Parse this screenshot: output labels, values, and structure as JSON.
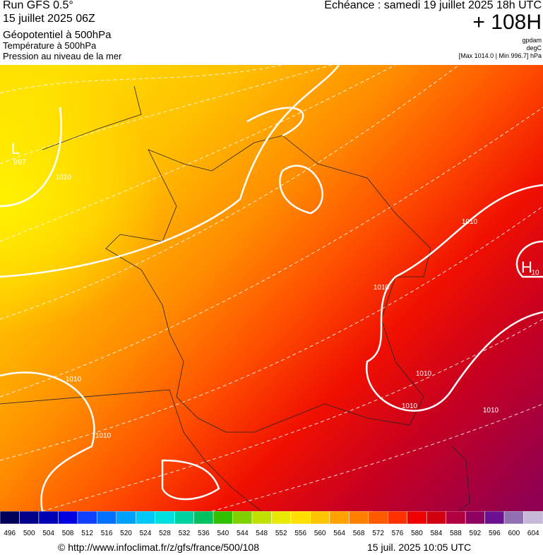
{
  "header": {
    "run": "Run GFS 0.5°",
    "run_date": "15 juillet 2025 06Z",
    "field_1": "Géopotentiel à 500hPa",
    "field_2": "Température à 500hPa",
    "field_3": "Pression au niveau de la mer",
    "valid": "Echéance : samedi 19 juillet 2025 18h UTC",
    "lead": "+ 108H",
    "unit_1": "gpdam",
    "unit_2": "degC",
    "extremes": "[Max 1014.0 | Min 996.7] hPa"
  },
  "map": {
    "labels": [
      "L",
      "997",
      "H",
      "10",
      "1010",
      "1010",
      "1010",
      "1010",
      "1010",
      "1010",
      "1010",
      "1010"
    ]
  },
  "colorbar": {
    "levels": [
      496,
      500,
      504,
      508,
      512,
      516,
      520,
      524,
      528,
      532,
      536,
      540,
      544,
      548,
      552,
      556,
      560,
      564,
      568,
      572,
      576,
      580,
      584,
      588,
      592,
      596,
      600,
      604
    ],
    "colors": [
      "#00005a",
      "#000088",
      "#0000b4",
      "#0000e0",
      "#1040ff",
      "#0070ff",
      "#00a0ff",
      "#00c8f8",
      "#00e0e0",
      "#00d2a0",
      "#00c060",
      "#30c000",
      "#80d000",
      "#c0e000",
      "#e8e800",
      "#ffe000",
      "#ffc400",
      "#ffa200",
      "#ff8000",
      "#ff5a00",
      "#ff3000",
      "#f00000",
      "#d00010",
      "#b00040",
      "#900060",
      "#6a1090",
      "#9070b0",
      "#c8b8d8"
    ]
  },
  "footer": {
    "source": "© http://www.infoclimat.fr/z/gfs/france/500/108",
    "generated": "15 juil. 2025 10:05 UTC"
  }
}
